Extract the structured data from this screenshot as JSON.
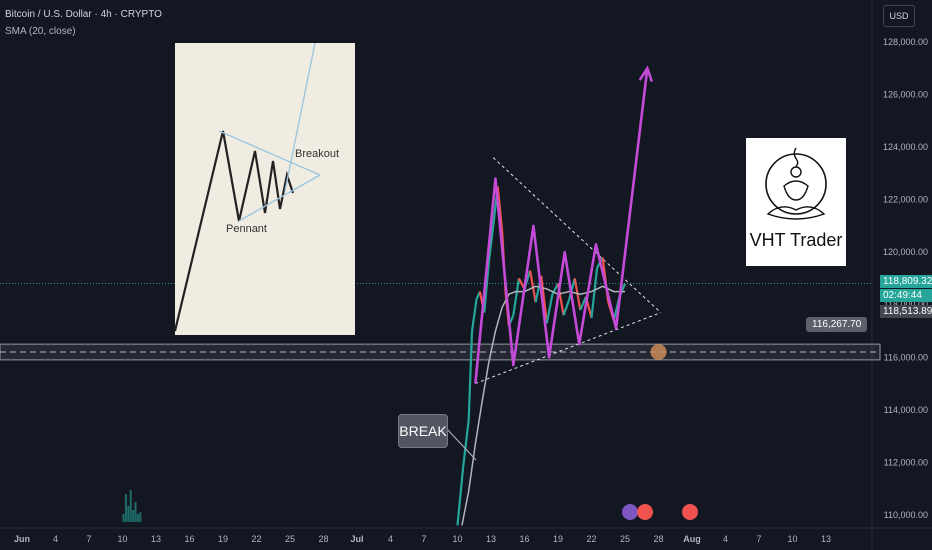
{
  "header": {
    "symbol_line": "Bitcoin / U.S. Dollar · 4h · CRYPTO",
    "indicator_line": "SMA (20, close)"
  },
  "currency_button": "USD",
  "price_tags": {
    "last_price": "118,809.32",
    "countdown": "02:49:44",
    "sma_value": "118,513.89",
    "level": "116,267.70"
  },
  "annotations": {
    "pennant_title_breakout": "Breakout",
    "pennant_title_pennant": "Pennant",
    "logo_text": "VHT Trader",
    "break_label": "BREAK"
  },
  "chart_data": {
    "type": "candlestick",
    "y_axis": {
      "ticks": [
        110000,
        112000,
        114000,
        116000,
        118000,
        120000,
        122000,
        124000,
        126000,
        128000
      ],
      "tick_labels": [
        "110,000.00",
        "112,000.00",
        "114,000.00",
        "116,000.00",
        "118,000.00",
        "120,000.00",
        "122,000.00",
        "124,000.00",
        "126,000.00",
        "128,000.00"
      ],
      "range": [
        109500,
        129600
      ]
    },
    "x_axis": {
      "tick_labels": [
        "Jun",
        "4",
        "7",
        "10",
        "13",
        "16",
        "19",
        "22",
        "25",
        "28",
        "Jul",
        "4",
        "7",
        "10",
        "13",
        "16",
        "19",
        "22",
        "25",
        "28",
        "Aug",
        "4",
        "7",
        "10",
        "13"
      ],
      "bold_labels": [
        "Jun",
        "Jul",
        "Aug"
      ]
    },
    "last_price": 118809.32,
    "sma_value": 118513.89,
    "horizontal_level": 116267.7,
    "support_zone": [
      115900,
      116500
    ],
    "price_path": [
      [
        10.0,
        109600
      ],
      [
        10.5,
        111800
      ],
      [
        11.0,
        113600
      ],
      [
        11.3,
        117000
      ],
      [
        11.7,
        118200
      ],
      [
        12.0,
        118500
      ],
      [
        12.4,
        117700
      ],
      [
        12.8,
        119600
      ],
      [
        13.2,
        121000
      ],
      [
        13.6,
        122500
      ],
      [
        14.0,
        120800
      ],
      [
        14.3,
        118500
      ],
      [
        14.6,
        117200
      ],
      [
        15.0,
        117600
      ],
      [
        15.5,
        119000
      ],
      [
        16.0,
        118600
      ],
      [
        16.5,
        119300
      ],
      [
        17.0,
        118100
      ],
      [
        17.5,
        119100
      ],
      [
        18.0,
        117300
      ],
      [
        18.5,
        118400
      ],
      [
        19.0,
        118800
      ],
      [
        19.5,
        117600
      ],
      [
        20.0,
        118200
      ],
      [
        20.5,
        119000
      ],
      [
        21.0,
        117800
      ],
      [
        21.5,
        118300
      ],
      [
        22.0,
        117500
      ],
      [
        22.5,
        119400
      ],
      [
        23.0,
        119800
      ],
      [
        23.5,
        118100
      ],
      [
        24.0,
        117400
      ],
      [
        24.5,
        118300
      ],
      [
        25.0,
        118800
      ]
    ],
    "sma_path": [
      [
        10.4,
        109600
      ],
      [
        11.0,
        110900
      ],
      [
        11.6,
        112700
      ],
      [
        12.2,
        114300
      ],
      [
        12.8,
        115800
      ],
      [
        13.4,
        117000
      ],
      [
        14.0,
        117900
      ],
      [
        14.6,
        118400
      ],
      [
        15.2,
        118500
      ],
      [
        16.0,
        118500
      ],
      [
        17.0,
        118700
      ],
      [
        18.0,
        118600
      ],
      [
        19.0,
        118400
      ],
      [
        20.0,
        118500
      ],
      [
        21.0,
        118400
      ],
      [
        22.0,
        118500
      ],
      [
        23.0,
        118700
      ],
      [
        24.0,
        118500
      ],
      [
        25.0,
        118500
      ]
    ],
    "pennant_upper": [
      [
        13.2,
        123600
      ],
      [
        28.2,
        117700
      ]
    ],
    "pennant_lower": [
      [
        11.6,
        115000
      ],
      [
        28.2,
        117700
      ]
    ],
    "zigzag": [
      [
        11.6,
        115000
      ],
      [
        13.4,
        122800
      ],
      [
        15.0,
        115700
      ],
      [
        16.8,
        121000
      ],
      [
        18.2,
        116000
      ],
      [
        19.6,
        120000
      ],
      [
        20.9,
        116500
      ],
      [
        22.4,
        120300
      ],
      [
        24.2,
        117100
      ],
      [
        27.0,
        127000
      ]
    ],
    "volume_bars": [
      {
        "x": 10.0,
        "v": 1.0
      },
      {
        "x": 10.2,
        "v": 3.5
      },
      {
        "x": 10.4,
        "v": 2.0
      },
      {
        "x": 10.6,
        "v": 4.0
      },
      {
        "x": 10.8,
        "v": 1.5
      },
      {
        "x": 11.0,
        "v": 2.5
      },
      {
        "x": 11.2,
        "v": 1.0
      },
      {
        "x": 11.4,
        "v": 1.2
      }
    ]
  }
}
